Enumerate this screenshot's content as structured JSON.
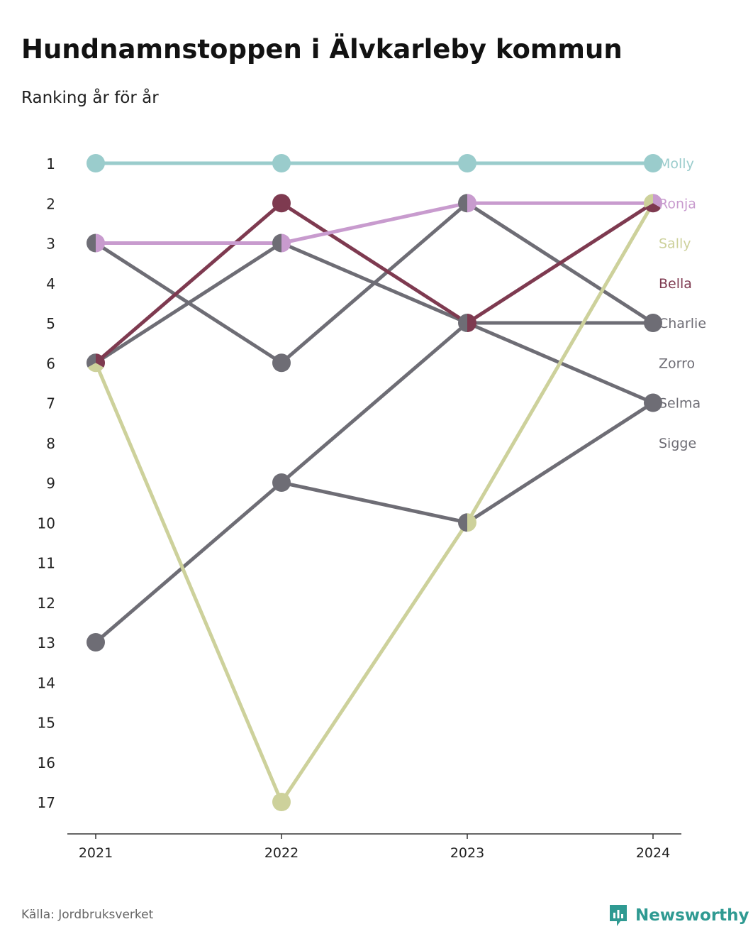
{
  "title": "Hundnamnstoppen i Älvkarleby kommun",
  "subtitle": "Ranking år för år",
  "source": "Källa: Jordbruksverket",
  "brand": {
    "name": "Newsworthy",
    "icon": "newsworthy-logo-icon",
    "color": "#2f9a92"
  },
  "chart_data": {
    "type": "line",
    "chart_style": "bump",
    "x": [
      "2021",
      "2022",
      "2023",
      "2024"
    ],
    "y_ticks": [
      "1",
      "2",
      "3",
      "4",
      "5",
      "6",
      "7",
      "8",
      "9",
      "10",
      "11",
      "12",
      "13",
      "14",
      "15",
      "16",
      "17"
    ],
    "ylim": [
      1,
      17
    ],
    "y_reversed": true,
    "grid": false,
    "legend": "right-end-labels",
    "series": [
      {
        "name": "Zorro",
        "color": "#6e6d75",
        "values": [
          13,
          9,
          5,
          5
        ]
      },
      {
        "name": "Sigge",
        "color": "#6e6d75",
        "values": [
          3,
          6,
          2,
          5
        ]
      },
      {
        "name": "Selma",
        "color": "#6e6d75",
        "values": [
          null,
          9,
          10,
          7
        ]
      },
      {
        "name": "Charlie",
        "color": "#6e6d75",
        "values": [
          6,
          3,
          5,
          7
        ]
      },
      {
        "name": "Sally",
        "color": "#cdd19b",
        "values": [
          6,
          17,
          10,
          2
        ]
      },
      {
        "name": "Bella",
        "color": "#7e3a50",
        "values": [
          6,
          2,
          5,
          2
        ]
      },
      {
        "name": "Ronja",
        "color": "#c89bce",
        "values": [
          3,
          3,
          2,
          2
        ]
      },
      {
        "name": "Molly",
        "color": "#9acccc",
        "values": [
          1,
          1,
          1,
          1
        ]
      }
    ],
    "end_labels": [
      {
        "name": "Molly",
        "color": "#9acccc",
        "rank": 1
      },
      {
        "name": "Ronja",
        "color": "#c89bce",
        "rank": 2
      },
      {
        "name": "Sally",
        "color": "#cdd19b",
        "rank": 3
      },
      {
        "name": "Bella",
        "color": "#7e3a50",
        "rank": 4
      },
      {
        "name": "Charlie",
        "color": "#6e6d75",
        "rank": 5
      },
      {
        "name": "Zorro",
        "color": "#6e6d75",
        "rank": 6
      },
      {
        "name": "Selma",
        "color": "#6e6d75",
        "rank": 7
      },
      {
        "name": "Sigge",
        "color": "#6e6d75",
        "rank": 8
      }
    ]
  }
}
